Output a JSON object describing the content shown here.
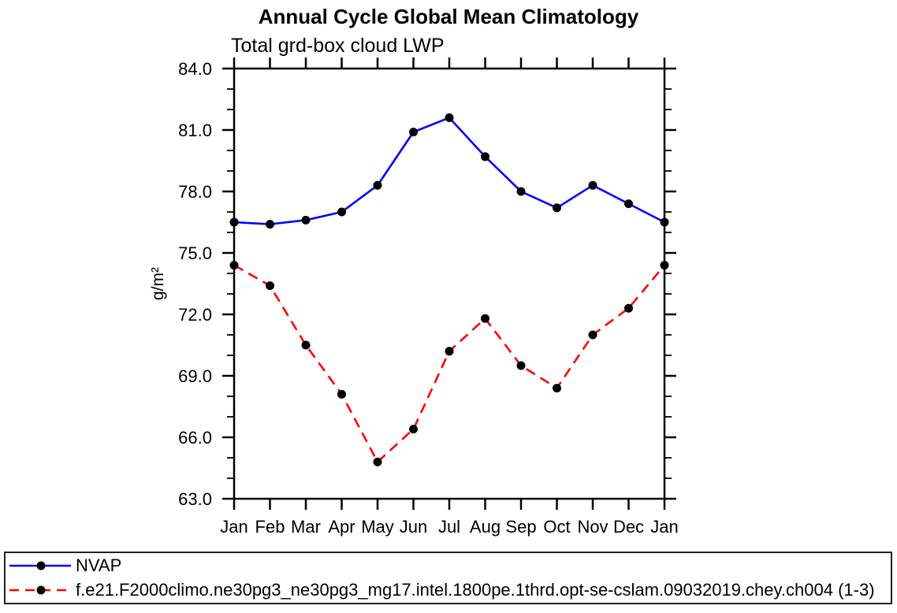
{
  "title": "Annual Cycle Global Mean Climatology",
  "subtitle": "Total grd-box cloud LWP",
  "chart_data": {
    "type": "line",
    "categories": [
      "Jan",
      "Feb",
      "Mar",
      "Apr",
      "May",
      "Jun",
      "Jul",
      "Aug",
      "Sep",
      "Oct",
      "Nov",
      "Dec",
      "Jan"
    ],
    "ylabel": "g/m²",
    "ylim": [
      63.0,
      84.0
    ],
    "ytick_major_step": 3.0,
    "ytick_minor_step": 1.0,
    "ytick_labels": [
      "84.0",
      "81.0",
      "78.0",
      "75.0",
      "72.0",
      "69.0",
      "66.0",
      "63.0"
    ],
    "grid": false,
    "legend_position": "bottom-left-box",
    "series": [
      {
        "name": "NVAP",
        "line_color": "#0000ff",
        "line_style": "solid",
        "marker": "filled-circle",
        "marker_color": "#000000",
        "values": [
          76.5,
          76.4,
          76.6,
          77.0,
          78.3,
          80.9,
          81.6,
          79.7,
          78.0,
          77.2,
          78.3,
          77.4,
          76.5
        ]
      },
      {
        "name": "f.e21.F2000climo.ne30pg3_ne30pg3_mg17.intel.1800pe.1thrd.opt-se-cslam.09032019.chey.ch004 (1-3)",
        "line_color": "#ff0000",
        "line_style": "dashed",
        "marker": "filled-circle",
        "marker_color": "#000000",
        "values": [
          74.4,
          73.4,
          70.5,
          68.1,
          64.8,
          66.4,
          70.2,
          71.8,
          69.5,
          68.4,
          71.0,
          72.3,
          74.4
        ]
      }
    ]
  }
}
